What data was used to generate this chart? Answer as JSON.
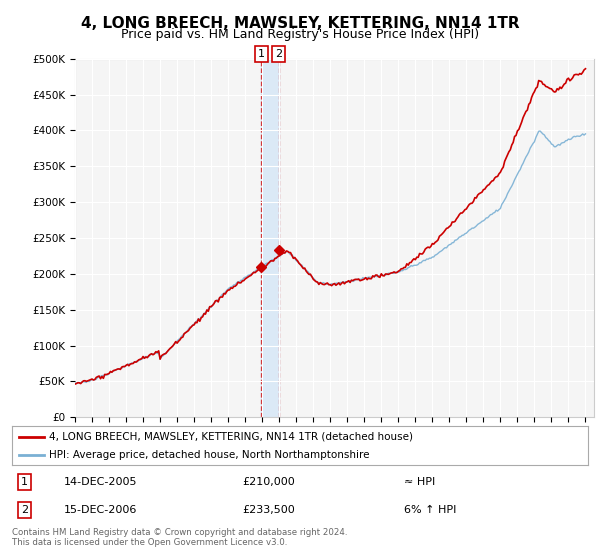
{
  "title": "4, LONG BREECH, MAWSLEY, KETTERING, NN14 1TR",
  "subtitle": "Price paid vs. HM Land Registry's House Price Index (HPI)",
  "title_fontsize": 11,
  "subtitle_fontsize": 9,
  "ylabel_ticks": [
    "£0",
    "£50K",
    "£100K",
    "£150K",
    "£200K",
    "£250K",
    "£300K",
    "£350K",
    "£400K",
    "£450K",
    "£500K"
  ],
  "ytick_vals": [
    0,
    50000,
    100000,
    150000,
    200000,
    250000,
    300000,
    350000,
    400000,
    450000,
    500000
  ],
  "ylim": [
    0,
    500000
  ],
  "xlim_start": 1995.0,
  "xlim_end": 2025.5,
  "hpi_color": "#7ab0d4",
  "price_color": "#cc0000",
  "sale1_x": 2005.96,
  "sale1_y": 210000,
  "sale2_x": 2006.96,
  "sale2_y": 233500,
  "legend_line1": "4, LONG BREECH, MAWSLEY, KETTERING, NN14 1TR (detached house)",
  "legend_line2": "HPI: Average price, detached house, North Northamptonshire",
  "table_row1_num": "1",
  "table_row1_date": "14-DEC-2005",
  "table_row1_price": "£210,000",
  "table_row1_hpi": "≈ HPI",
  "table_row2_num": "2",
  "table_row2_date": "15-DEC-2006",
  "table_row2_price": "£233,500",
  "table_row2_hpi": "6% ↑ HPI",
  "footnote": "Contains HM Land Registry data © Crown copyright and database right 2024.\nThis data is licensed under the Open Government Licence v3.0.",
  "background_color": "#ffffff",
  "plot_bg_color": "#f5f5f5",
  "grid_color": "#ffffff"
}
